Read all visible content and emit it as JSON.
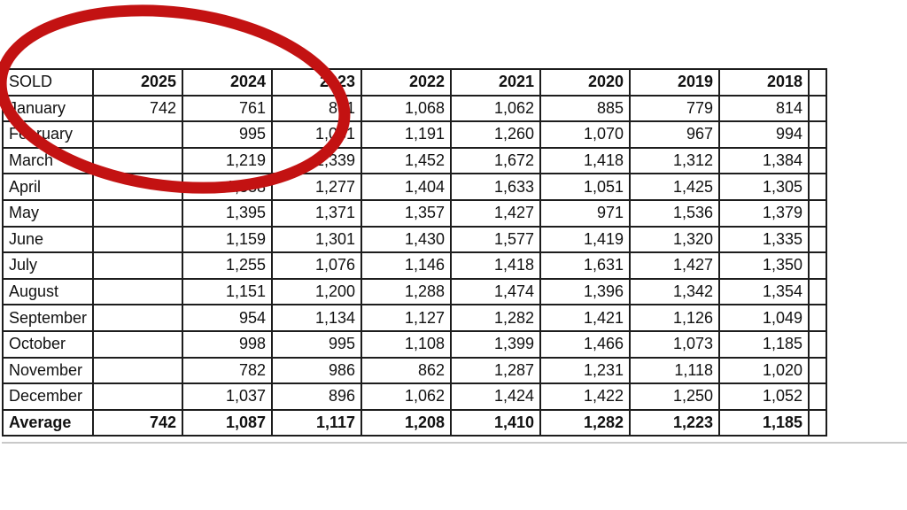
{
  "annotation": {
    "shape": "red-ellipse",
    "color": "#c31212",
    "circles": "2025 and 2024 header columns with January values"
  },
  "table": {
    "corner_label": "SOLD",
    "years": [
      "2025",
      "2024",
      "2023",
      "2022",
      "2021",
      "2020",
      "2019",
      "2018"
    ],
    "rows": [
      {
        "label": "January",
        "values": [
          "742",
          "761",
          "801",
          "1,068",
          "1,062",
          "885",
          "779",
          "814"
        ]
      },
      {
        "label": "February",
        "values": [
          "",
          "995",
          "1,031",
          "1,191",
          "1,260",
          "1,070",
          "967",
          "994"
        ]
      },
      {
        "label": "March",
        "values": [
          "",
          "1,219",
          "1,339",
          "1,452",
          "1,672",
          "1,418",
          "1,312",
          "1,384"
        ]
      },
      {
        "label": "April",
        "values": [
          "",
          "1,338",
          "1,277",
          "1,404",
          "1,633",
          "1,051",
          "1,425",
          "1,305"
        ]
      },
      {
        "label": "May",
        "values": [
          "",
          "1,395",
          "1,371",
          "1,357",
          "1,427",
          "971",
          "1,536",
          "1,379"
        ]
      },
      {
        "label": "June",
        "values": [
          "",
          "1,159",
          "1,301",
          "1,430",
          "1,577",
          "1,419",
          "1,320",
          "1,335"
        ]
      },
      {
        "label": "July",
        "values": [
          "",
          "1,255",
          "1,076",
          "1,146",
          "1,418",
          "1,631",
          "1,427",
          "1,350"
        ]
      },
      {
        "label": "August",
        "values": [
          "",
          "1,151",
          "1,200",
          "1,288",
          "1,474",
          "1,396",
          "1,342",
          "1,354"
        ]
      },
      {
        "label": "September",
        "values": [
          "",
          "954",
          "1,134",
          "1,127",
          "1,282",
          "1,421",
          "1,126",
          "1,049"
        ]
      },
      {
        "label": "October",
        "values": [
          "",
          "998",
          "995",
          "1,108",
          "1,399",
          "1,466",
          "1,073",
          "1,185"
        ]
      },
      {
        "label": "November",
        "values": [
          "",
          "782",
          "986",
          "862",
          "1,287",
          "1,231",
          "1,118",
          "1,020"
        ]
      },
      {
        "label": "December",
        "values": [
          "",
          "1,037",
          "896",
          "1,062",
          "1,424",
          "1,422",
          "1,250",
          "1,052"
        ]
      }
    ],
    "footer": {
      "label": "Average",
      "values": [
        "742",
        "1,087",
        "1,117",
        "1,208",
        "1,410",
        "1,282",
        "1,223",
        "1,185"
      ]
    }
  }
}
